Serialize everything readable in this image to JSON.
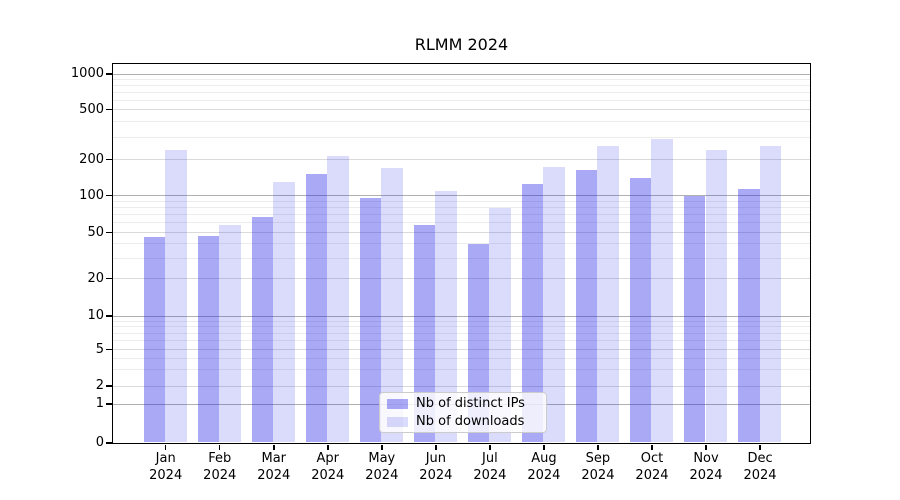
{
  "title": "RLMM 2024",
  "chart_data": {
    "type": "bar",
    "title": "RLMM 2024",
    "categories": [
      "Jan 2024",
      "Feb 2024",
      "Mar 2024",
      "Apr 2024",
      "May 2024",
      "Jun 2024",
      "Jul 2024",
      "Aug 2024",
      "Sep 2024",
      "Oct 2024",
      "Nov 2024",
      "Dec 2024"
    ],
    "x_tick_line1": [
      "Jan",
      "Feb",
      "Mar",
      "Apr",
      "May",
      "Jun",
      "Jul",
      "Aug",
      "Sep",
      "Oct",
      "Nov",
      "Dec"
    ],
    "x_tick_line2": [
      "2024",
      "2024",
      "2024",
      "2024",
      "2024",
      "2024",
      "2024",
      "2024",
      "2024",
      "2024",
      "2024",
      "2024"
    ],
    "series": [
      {
        "name": "Nb of distinct IPs",
        "color": "rgba(30,30,230,0.38)",
        "color_on_white_hex": "#a9a9f6",
        "values": [
          45,
          46,
          66,
          150,
          95,
          57,
          39,
          124,
          163,
          140,
          99,
          113
        ]
      },
      {
        "name": "Nb of downloads",
        "color": "rgba(30,30,230,0.16)",
        "color_on_white_hex": "#dbdbfb",
        "values": [
          238,
          57,
          128,
          214,
          168,
          108,
          78,
          173,
          255,
          289,
          236,
          254
        ]
      }
    ],
    "yticks": [
      0,
      1,
      2,
      5,
      10,
      20,
      50,
      100,
      200,
      500,
      1000
    ],
    "ylim": [
      0,
      1200
    ],
    "yscale": "symlog",
    "grid": "both",
    "xlabel": "",
    "ylabel": "",
    "legend_position": "lower center"
  },
  "legend": {
    "item1": "Nb of distinct IPs",
    "item2": "Nb of downloads"
  },
  "colors": {
    "grid_decade": "#b0b0b0",
    "grid_sub": "#dadada",
    "grid_minor": "#ececec",
    "spine": "#000000",
    "text": "#000000"
  }
}
